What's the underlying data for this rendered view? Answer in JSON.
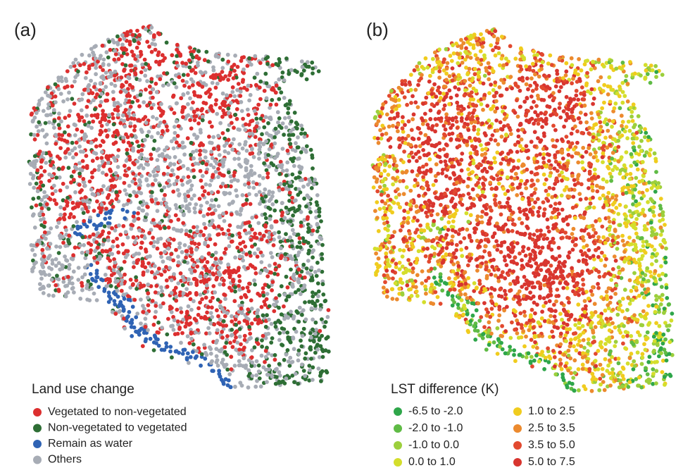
{
  "panels": [
    {
      "label": "(a)",
      "legend": {
        "title": "Land use change",
        "items": [
          {
            "name": "Vegetated to non-vegetated",
            "color": "#dc2f2f"
          },
          {
            "name": "Non-vegetated to vegetated",
            "color": "#2e6e35"
          },
          {
            "name": "Remain as water",
            "color": "#2f63b4"
          },
          {
            "name": "Others",
            "color": "#a7acb5"
          }
        ]
      }
    },
    {
      "label": "(b)",
      "legend": {
        "title": "LST difference (K)",
        "items": [
          {
            "name": "-6.5 to -2.0",
            "color": "#2ea64a"
          },
          {
            "name": "-2.0 to -1.0",
            "color": "#5fbb45"
          },
          {
            "name": "-1.0 to 0.0",
            "color": "#9ccf3c"
          },
          {
            "name": "0.0 to 1.0",
            "color": "#d4de2c"
          },
          {
            "name": "1.0 to 2.5",
            "color": "#f0cc1e"
          },
          {
            "name": "2.5 to 3.5",
            "color": "#ec8a2e"
          },
          {
            "name": "3.5 to 5.0",
            "color": "#e2492f"
          },
          {
            "name": "5.0 to 7.5",
            "color": "#d8352f"
          }
        ]
      }
    }
  ]
}
